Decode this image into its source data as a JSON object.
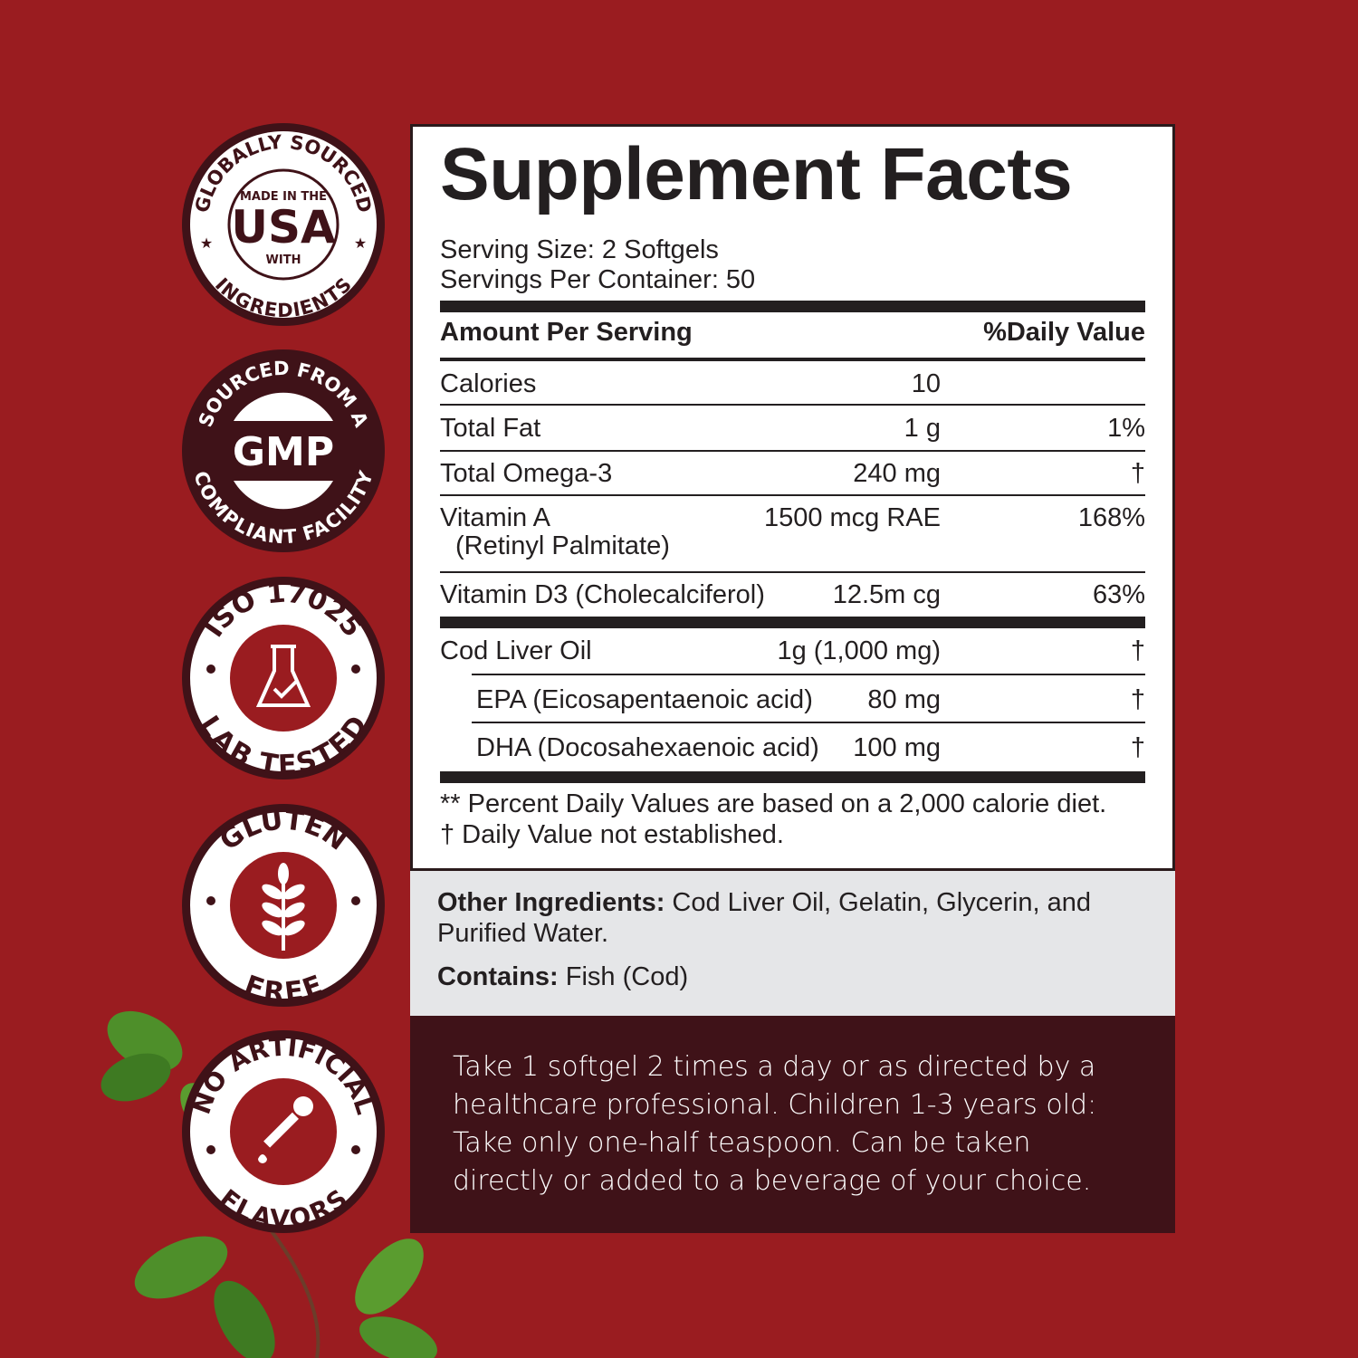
{
  "colors": {
    "background": "#9a1c20",
    "badge_dark": "#3f1218",
    "panel_gray": "#e5e6e8",
    "directions_bg": "#3f1218"
  },
  "badges": [
    {
      "top": "GLOBALLY SOURCED",
      "center_small": "MADE IN THE",
      "center_big": "USA",
      "center_bottom": "WITH",
      "bottom": "INGREDIENTS",
      "icon": "star-icon"
    },
    {
      "top": "SOURCED FROM A",
      "center_big": "GMP",
      "bottom": "COMPLIANT FACILITY"
    },
    {
      "top": "ISO 17025",
      "bottom": "LAB TESTED",
      "icon": "flask-check-icon"
    },
    {
      "top": "GLUTEN",
      "bottom": "FREE",
      "icon": "wheat-icon"
    },
    {
      "top": "NO ARTIFICIAL",
      "bottom": "FLAVORS",
      "icon": "dropper-icon"
    }
  ],
  "facts": {
    "title": "Supplement Facts",
    "serving_size": "Serving Size: 2 Softgels",
    "servings_per_container": "Servings Per Container: 50",
    "header_amount": "Amount Per Serving",
    "header_dv": "%Daily Value",
    "rows": [
      {
        "name": "Calories",
        "amount": "10",
        "dv": ""
      },
      {
        "name": "Total Fat",
        "amount": "1 g",
        "dv": "1%"
      },
      {
        "name": "Total Omega-3",
        "amount": "240 mg",
        "dv": "†"
      },
      {
        "name": "Vitamin A",
        "name2": "(Retinyl Palmitate)",
        "amount": "1500 mcg RAE",
        "dv": "168%"
      },
      {
        "name": "Vitamin D3 (Cholecalciferol)",
        "amount": "12.5m cg",
        "dv": "63%"
      },
      {
        "name": "Cod Liver Oil",
        "amount": "1g (1,000 mg)",
        "dv": "†"
      },
      {
        "name": "EPA (Eicosapentaenoic acid)",
        "amount": "80 mg",
        "dv": "†"
      },
      {
        "name": "DHA (Docosahexaenoic acid)",
        "amount": "100 mg",
        "dv": "†"
      }
    ],
    "footnote1": "** Percent Daily Values are based on a 2,000 calorie diet.",
    "footnote2": "† Daily Value not established."
  },
  "other_ingredients": {
    "label": "Other Ingredients:",
    "text": " Cod Liver Oil, Gelatin, Glycerin, and Purified Water."
  },
  "contains": {
    "label": "Contains:",
    "text": " Fish (Cod)"
  },
  "directions": "Take 1 softgel 2 times a day or as directed by a healthcare professional. Children 1-3 years old: Take only one-half teaspoon. Can be taken directly or added to a beverage of your choice."
}
